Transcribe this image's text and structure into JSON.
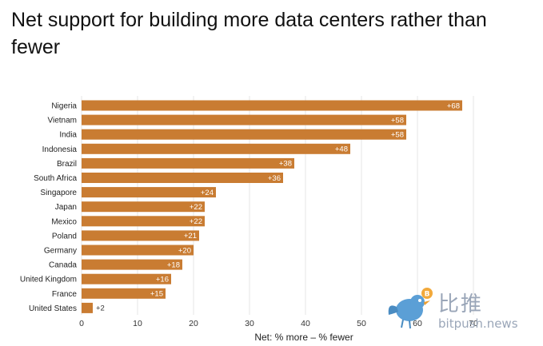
{
  "chart_data": {
    "type": "bar",
    "orientation": "horizontal",
    "title": "Net support for building more data centers rather than fewer",
    "xlabel": "Net: % more – % fewer",
    "ylabel": "",
    "xlim": [
      0,
      70
    ],
    "xticks": [
      0,
      10,
      20,
      30,
      40,
      50,
      60,
      70
    ],
    "grid": true,
    "legend": "none",
    "bar_color": "#c97c32",
    "categories": [
      "Nigeria",
      "Vietnam",
      "India",
      "Indonesia",
      "Brazil",
      "South Africa",
      "Singapore",
      "Japan",
      "Mexico",
      "Poland",
      "Germany",
      "Canada",
      "United Kingdom",
      "France",
      "United States"
    ],
    "values": [
      68,
      58,
      58,
      48,
      38,
      36,
      24,
      22,
      22,
      21,
      20,
      18,
      16,
      15,
      2
    ],
    "data_labels": [
      "+68",
      "+58",
      "+58",
      "+48",
      "+38",
      "+36",
      "+24",
      "+22",
      "+22",
      "+21",
      "+20",
      "+18",
      "+16",
      "+15",
      "+2"
    ]
  },
  "watermark": {
    "chinese_text": "比推",
    "site": "bitpush.news",
    "icon": "bird-coin-icon",
    "color": "#9aa6b8"
  }
}
